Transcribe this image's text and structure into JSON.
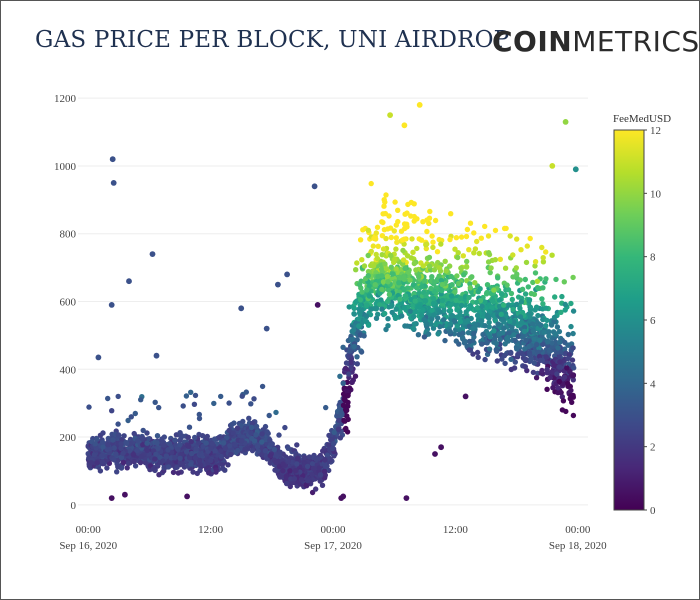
{
  "header": {
    "title": "GAS PRICE PER BLOCK, UNI AIRDROP",
    "brand_bold": "COIN",
    "brand_light": "METRICS"
  },
  "chart_data": {
    "type": "scatter",
    "title": "GAS PRICE PER BLOCK, UNI AIRDROP",
    "xlabel": "",
    "ylabel": "",
    "ylim": [
      -30,
      1230
    ],
    "xlim_hours": [
      -1,
      49
    ],
    "yticks": [
      0,
      200,
      400,
      600,
      800,
      1000,
      1200
    ],
    "yticks_labels": [
      "0",
      "200",
      "400",
      "600",
      "800",
      "1000",
      "1200"
    ],
    "xticks_hours": [
      0,
      12,
      24,
      36,
      48
    ],
    "xticks_labels": [
      [
        "00:00",
        "Sep 16, 2020"
      ],
      [
        "12:00",
        ""
      ],
      [
        "00:00",
        "Sep 17, 2020"
      ],
      [
        "12:00",
        ""
      ],
      [
        "00:00",
        "Sep 18, 2020"
      ]
    ],
    "grid": true,
    "colorbar": {
      "title": "FeeMedUSD",
      "range": [
        0,
        12
      ],
      "ticks": [
        0,
        2,
        4,
        6,
        8,
        10,
        12
      ],
      "ticks_labels": [
        "0",
        "2",
        "4",
        "6",
        "8",
        "10",
        "12"
      ],
      "colorscale": "viridis"
    },
    "trend_hours": [
      0,
      1,
      2,
      3,
      4,
      5,
      6,
      7,
      8,
      9,
      10,
      11,
      12,
      13,
      14,
      15,
      16,
      17,
      18,
      19,
      20,
      21,
      22,
      23,
      24,
      25,
      26,
      27,
      28,
      29,
      30,
      31,
      32,
      33,
      34,
      35,
      36,
      37,
      38,
      39,
      40,
      41,
      42,
      43,
      44,
      45,
      46,
      47,
      48
    ],
    "trend_gas": [
      145,
      150,
      165,
      160,
      155,
      170,
      160,
      150,
      150,
      160,
      155,
      145,
      140,
      150,
      185,
      190,
      210,
      195,
      150,
      120,
      105,
      100,
      100,
      115,
      170,
      300,
      500,
      580,
      660,
      660,
      640,
      650,
      620,
      600,
      610,
      600,
      590,
      560,
      550,
      545,
      560,
      530,
      520,
      500,
      490,
      470,
      420,
      390,
      400
    ],
    "outliers": [
      {
        "h": 2.4,
        "gas": 1020,
        "fee": 3
      },
      {
        "h": 2.5,
        "gas": 950,
        "fee": 3
      },
      {
        "h": 6.3,
        "gas": 740,
        "fee": 3
      },
      {
        "h": 4.0,
        "gas": 660,
        "fee": 3
      },
      {
        "h": 2.3,
        "gas": 590,
        "fee": 3
      },
      {
        "h": 22.2,
        "gas": 940,
        "fee": 3
      },
      {
        "h": 19.5,
        "gas": 680,
        "fee": 3
      },
      {
        "h": 18.6,
        "gas": 650,
        "fee": 3
      },
      {
        "h": 22.5,
        "gas": 590,
        "fee": 0.5
      },
      {
        "h": 15.0,
        "gas": 580,
        "fee": 3
      },
      {
        "h": 17.5,
        "gas": 520,
        "fee": 3
      },
      {
        "h": 6.7,
        "gas": 440,
        "fee": 3
      },
      {
        "h": 1.0,
        "gas": 435,
        "fee": 3
      },
      {
        "h": 3.6,
        "gas": 30,
        "fee": 0.5
      },
      {
        "h": 2.3,
        "gas": 20,
        "fee": 0.5
      },
      {
        "h": 9.7,
        "gas": 25,
        "fee": 0.5
      },
      {
        "h": 25.0,
        "gas": 25,
        "fee": 0.5
      },
      {
        "h": 24.8,
        "gas": 20,
        "fee": 0.5
      },
      {
        "h": 32.5,
        "gas": 1180,
        "fee": 12
      },
      {
        "h": 29.6,
        "gas": 1150,
        "fee": 11
      },
      {
        "h": 31.0,
        "gas": 1120,
        "fee": 12
      },
      {
        "h": 46.8,
        "gas": 1130,
        "fee": 10
      },
      {
        "h": 45.5,
        "gas": 1000,
        "fee": 11
      },
      {
        "h": 47.8,
        "gas": 990,
        "fee": 6
      },
      {
        "h": 31.2,
        "gas": 20,
        "fee": 0.5
      },
      {
        "h": 34.6,
        "gas": 170,
        "fee": 0.5
      },
      {
        "h": 34.0,
        "gas": 150,
        "fee": 0.5
      },
      {
        "h": 37.0,
        "gas": 320,
        "fee": 0.5
      }
    ]
  }
}
